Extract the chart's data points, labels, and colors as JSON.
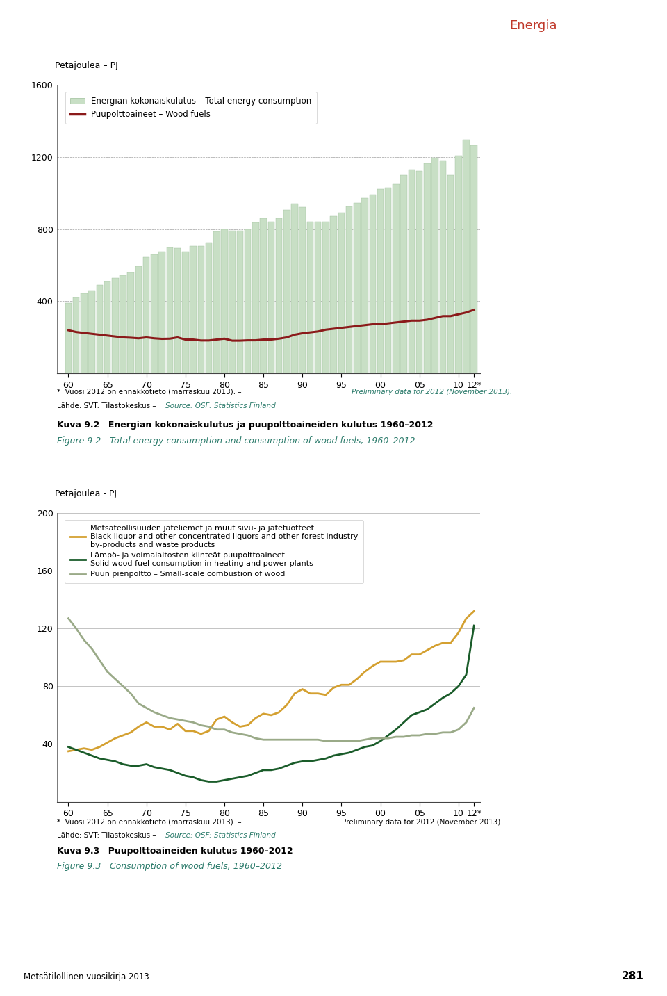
{
  "years": [
    1960,
    1961,
    1962,
    1963,
    1964,
    1965,
    1966,
    1967,
    1968,
    1969,
    1970,
    1971,
    1972,
    1973,
    1974,
    1975,
    1976,
    1977,
    1978,
    1979,
    1980,
    1981,
    1982,
    1983,
    1984,
    1985,
    1986,
    1987,
    1988,
    1989,
    1990,
    1991,
    1992,
    1993,
    1994,
    1995,
    1996,
    1997,
    1998,
    1999,
    2000,
    2001,
    2002,
    2003,
    2004,
    2005,
    2006,
    2007,
    2008,
    2009,
    2010,
    2011,
    2012
  ],
  "total_energy": [
    390,
    420,
    445,
    460,
    490,
    510,
    530,
    545,
    560,
    595,
    645,
    660,
    675,
    700,
    695,
    675,
    705,
    705,
    725,
    785,
    800,
    790,
    790,
    800,
    835,
    860,
    840,
    860,
    905,
    940,
    920,
    840,
    840,
    840,
    870,
    890,
    925,
    945,
    970,
    990,
    1020,
    1030,
    1050,
    1100,
    1130,
    1120,
    1165,
    1195,
    1180,
    1100,
    1205,
    1295,
    1265
  ],
  "wood_fuels_line": [
    240,
    230,
    225,
    220,
    215,
    210,
    205,
    200,
    198,
    195,
    200,
    195,
    192,
    193,
    200,
    188,
    188,
    183,
    183,
    188,
    193,
    182,
    182,
    184,
    184,
    188,
    188,
    193,
    200,
    215,
    223,
    228,
    233,
    243,
    248,
    253,
    258,
    263,
    268,
    273,
    273,
    278,
    283,
    288,
    293,
    293,
    298,
    308,
    318,
    318,
    328,
    338,
    353
  ],
  "black_liquor": [
    35,
    36,
    37,
    36,
    38,
    41,
    44,
    46,
    48,
    52,
    55,
    52,
    52,
    50,
    54,
    49,
    49,
    47,
    49,
    57,
    59,
    55,
    52,
    53,
    58,
    61,
    60,
    62,
    67,
    75,
    78,
    75,
    75,
    74,
    79,
    81,
    81,
    85,
    90,
    94,
    97,
    97,
    97,
    98,
    102,
    102,
    105,
    108,
    110,
    110,
    117,
    127,
    132
  ],
  "solid_wood_fuel": [
    38,
    36,
    34,
    32,
    30,
    29,
    28,
    26,
    25,
    25,
    26,
    24,
    23,
    22,
    20,
    18,
    17,
    15,
    14,
    14,
    15,
    16,
    17,
    18,
    20,
    22,
    22,
    23,
    25,
    27,
    28,
    28,
    29,
    30,
    32,
    33,
    34,
    36,
    38,
    39,
    42,
    46,
    50,
    55,
    60,
    62,
    64,
    68,
    72,
    75,
    80,
    88,
    122
  ],
  "small_scale": [
    127,
    120,
    112,
    106,
    98,
    90,
    85,
    80,
    75,
    68,
    65,
    62,
    60,
    58,
    57,
    56,
    55,
    53,
    52,
    50,
    50,
    48,
    47,
    46,
    44,
    43,
    43,
    43,
    43,
    43,
    43,
    43,
    43,
    42,
    42,
    42,
    42,
    42,
    43,
    44,
    44,
    44,
    45,
    45,
    46,
    46,
    47,
    47,
    48,
    48,
    50,
    55,
    65
  ],
  "header_red": "#c0392b",
  "header_dark_red": "#c0392b",
  "bar_color": "#c8dfc5",
  "bar_edge_color": "#9ebf9a",
  "line1_color": "#8b1a1a",
  "orange_color": "#d4a030",
  "dark_green_color": "#1a5c2a",
  "sage_color": "#9aaa88",
  "teal_color": "#2a7a6a",
  "chart1_ylabel": "Petajoulea – PJ",
  "chart2_ylabel": "Petajoulea - PJ",
  "chart1_ylim": [
    0,
    1600
  ],
  "chart2_ylim": [
    0,
    200
  ],
  "chart1_yticks": [
    0,
    400,
    800,
    1200,
    1600
  ],
  "chart2_yticks": [
    0,
    40,
    80,
    120,
    160,
    200
  ],
  "xtick_labels": [
    "60",
    "65",
    "70",
    "75",
    "80",
    "85",
    "90",
    "95",
    "00",
    "05",
    "10",
    "12*"
  ],
  "xtick_positions": [
    1960,
    1965,
    1970,
    1975,
    1980,
    1985,
    1990,
    1995,
    2000,
    2005,
    2010,
    2012
  ],
  "footnote1_black": "*  Vuosi 2012 on ennakkotieto (marraskuu 2013). – ",
  "footnote1_teal": "Preliminary data for 2012 (November 2013).",
  "footnote2_black": "Lähde: SVT: Tilastokeskus – ",
  "footnote2_teal": "Source: OSF: Statistics Finland",
  "footnote3_black": "*  Vuosi 2012 on ennakkotieto (marraskuu 2013). –",
  "footnote3_teal": "Preliminary data for 2012 (November 2013).",
  "kuva92_fi": "Kuva 9.2 Energian kokonaiskulutus ja puupolttoaineiden kulutus 1960–2012",
  "kuva92_en": "Figure 9.2 Total energy consumption and consumption of wood fuels, 1960–2012",
  "kuva93_fi": "Kuva 9.3 Puupolttoaineiden kulutus 1960–2012",
  "kuva93_en": "Figure 9.3 Consumption of wood fuels, 1960–2012",
  "bottom_left": "Metsätilollinen vuosikirja 2013",
  "bottom_right": "281",
  "legend1_bar": "Energian kokonaiskulutus – Total energy consumption",
  "legend1_line": "Puupolttoaineet – Wood fuels",
  "legend2_orange": "Metsäteollisuuden jäteliemet ja muut sivu- ja jätetuotteet\nBlack liquor and other concentrated liquors and other forest industry\nby-products and waste products",
  "legend2_dkgreen": "Lämpö- ja voimalaitosten kiinteät puupolttoaineet\nSolid wood fuel consumption in heating and power plants",
  "legend2_sage": "Puun pienpoltto – Small-scale combustion of wood"
}
